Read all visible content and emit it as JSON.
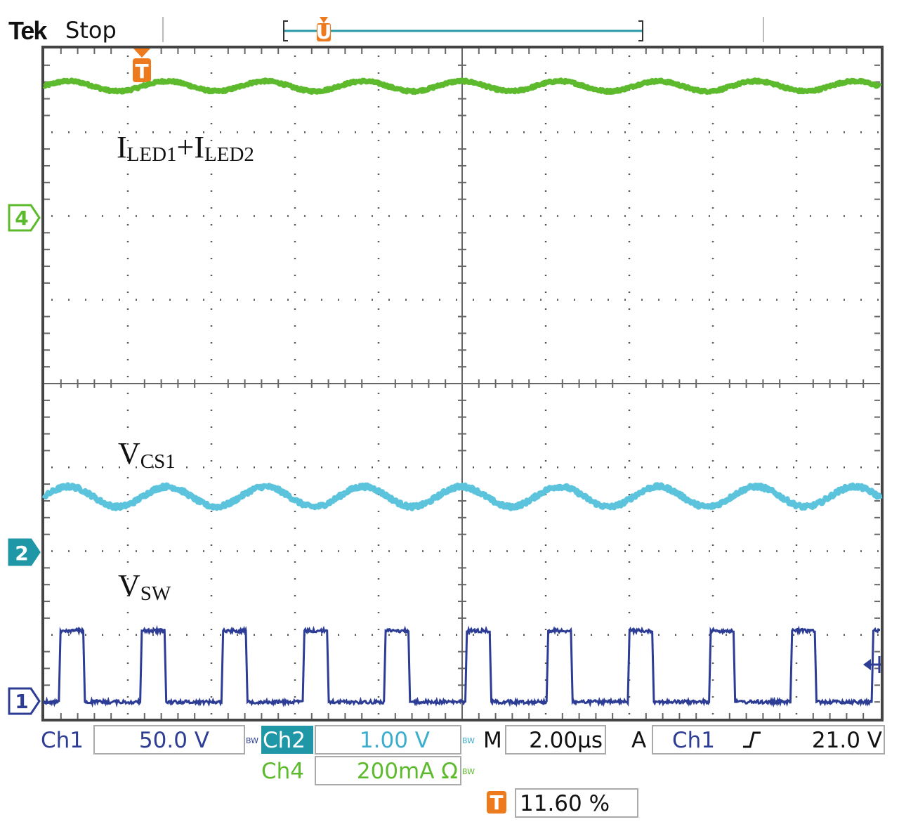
{
  "header": {
    "brand": "Tek",
    "run_state": "Stop"
  },
  "channel_markers": {
    "ch4": "4",
    "ch2": "2",
    "ch1": "1",
    "trigger": "T",
    "record_cursor": "U"
  },
  "colors": {
    "ch1": "#2d3d96",
    "ch2": "#5bc4dc",
    "ch4": "#5cba2c",
    "ch2_label_bg": "#1f97a6",
    "trigger": "#ee7a1e",
    "grid": "#555555",
    "frame": "#444444"
  },
  "chart_data": {
    "type": "line",
    "x_unit": "µs",
    "xlim": [
      0,
      20
    ],
    "divisions": [
      10,
      8
    ],
    "grid": true,
    "annotations": {
      "iled": {
        "main": "I",
        "sub1": "LED1",
        "plus": "+",
        "main2": "I",
        "sub2": "LED2"
      },
      "vcs": {
        "main": "V",
        "sub": "CS1"
      },
      "vsw": {
        "main": "V",
        "sub": "SW"
      }
    },
    "series": [
      {
        "channel": "Ch4",
        "scale": "200mA Ω",
        "ground_div": 2,
        "level_div": 3.55,
        "ripple_div": 0.06,
        "period_us": 2.35
      },
      {
        "channel": "Ch2",
        "scale": "1.00 V",
        "ground_div": -2,
        "level_div": -1.35,
        "ripple_div": 0.12,
        "period_us": 2.35
      },
      {
        "channel": "Ch1",
        "scale": "50.0 V",
        "ground_div": -3.8,
        "high_div": -2.95,
        "period_us": 1.945,
        "first_edge_us": 0.35,
        "duty": 0.3
      }
    ],
    "settings": {
      "ch1_label": "Ch1",
      "ch1_scale": "50.0 V",
      "ch2_label": "Ch2",
      "ch2_scale": "1.00 V",
      "ch4_label": "Ch4",
      "ch4_scale": "200mA Ω",
      "timebase_label": "M",
      "timebase": "2.00µs",
      "trigger_mode": "A",
      "trigger_source": "Ch1",
      "trigger_slope": "rising",
      "trigger_level": "21.0 V",
      "trigger_position": "11.60 %",
      "bw_limit": "BW"
    }
  }
}
